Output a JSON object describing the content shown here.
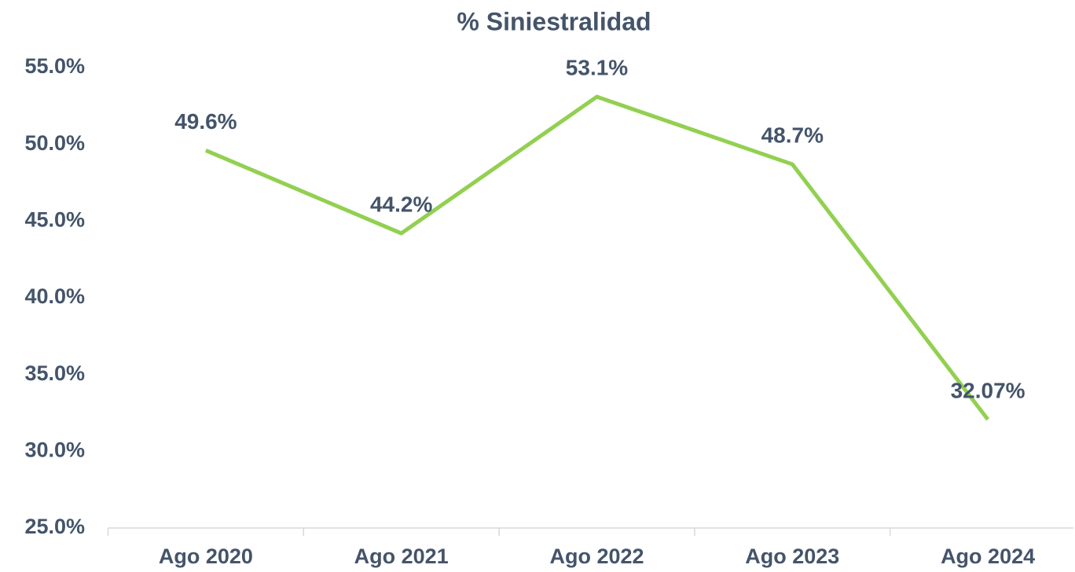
{
  "chart_data": {
    "type": "line",
    "title": "% Siniestralidad",
    "categories": [
      "Ago 2020",
      "Ago 2021",
      "Ago 2022",
      "Ago 2023",
      "Ago 2024"
    ],
    "values": [
      49.6,
      44.2,
      53.1,
      48.7,
      32.07
    ],
    "value_labels": [
      "49.6%",
      "44.2%",
      "53.1%",
      "48.7%",
      "32.07%"
    ],
    "color": "#92d050",
    "ylim": [
      25,
      55
    ],
    "yticks": [
      {
        "value": 25,
        "label": "25.0%"
      },
      {
        "value": 30,
        "label": "30.0%"
      },
      {
        "value": 35,
        "label": "35.0%"
      },
      {
        "value": 40,
        "label": "40.0%"
      },
      {
        "value": 45,
        "label": "45.0%"
      },
      {
        "value": 50,
        "label": "50.0%"
      },
      {
        "value": 55,
        "label": "55.0%"
      }
    ],
    "grid": false
  }
}
